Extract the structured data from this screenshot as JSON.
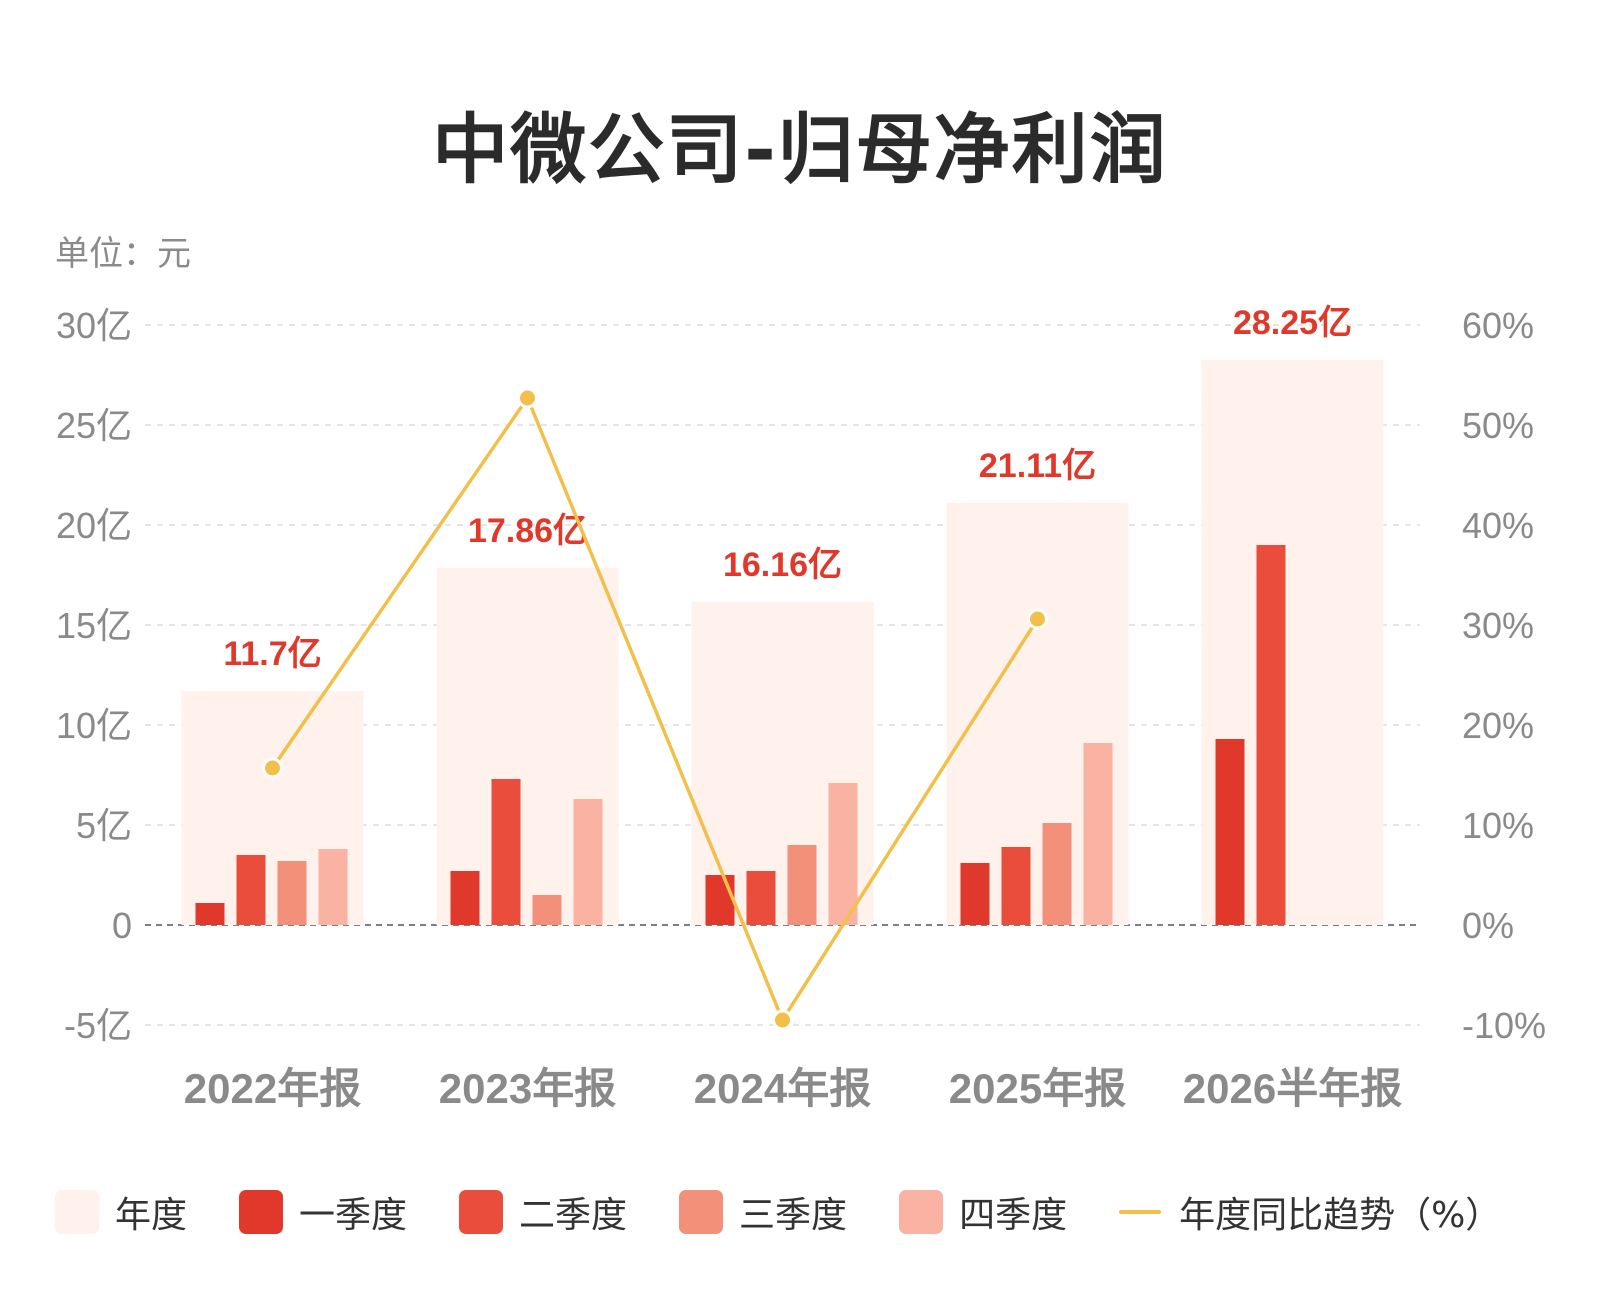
{
  "title": "中微公司-归母净利润",
  "unit_label": "单位：元",
  "legend": [
    {
      "label": "年度",
      "color": "#fff1ec",
      "kind": "box"
    },
    {
      "label": "一季度",
      "color": "#e0392b",
      "kind": "box"
    },
    {
      "label": "二季度",
      "color": "#ea4d3c",
      "kind": "box"
    },
    {
      "label": "三季度",
      "color": "#f2907a",
      "kind": "box"
    },
    {
      "label": "四季度",
      "color": "#fab2a2",
      "kind": "box"
    },
    {
      "label": "年度同比趋势（%）",
      "color": "#f2c04a",
      "kind": "line"
    }
  ],
  "chart_data": {
    "type": "bar",
    "title": "中微公司-归母净利润",
    "categories": [
      "2022年报",
      "2023年报",
      "2024年报",
      "2025年报",
      "2026半年报"
    ],
    "left_axis": {
      "ylim": [
        -5,
        30
      ],
      "ticks": [
        -5,
        0,
        5,
        10,
        15,
        20,
        25,
        30
      ],
      "tick_labels": [
        "-5亿",
        "0",
        "5亿",
        "10亿",
        "15亿",
        "20亿",
        "25亿",
        "30亿"
      ]
    },
    "right_axis": {
      "ylim": [
        -10,
        60
      ],
      "ticks": [
        -10,
        0,
        10,
        20,
        30,
        40,
        50,
        60
      ],
      "tick_labels": [
        "-10%",
        "0%",
        "10%",
        "20%",
        "30%",
        "40%",
        "50%",
        "60%"
      ]
    },
    "grid": true,
    "legend_position": "bottom",
    "annual": {
      "name": "年度",
      "values": [
        11.7,
        17.86,
        16.16,
        21.11,
        28.25
      ],
      "labels": [
        "11.7亿",
        "17.86亿",
        "16.16亿",
        "21.11亿",
        "28.25亿"
      ]
    },
    "series": [
      {
        "name": "一季度",
        "values": [
          1.1,
          2.7,
          2.5,
          3.1,
          9.3
        ]
      },
      {
        "name": "二季度",
        "values": [
          3.5,
          7.3,
          2.7,
          3.9,
          19.0
        ]
      },
      {
        "name": "三季度",
        "values": [
          3.2,
          1.5,
          4.0,
          5.1,
          null
        ]
      },
      {
        "name": "四季度",
        "values": [
          3.8,
          6.3,
          7.1,
          9.1,
          null
        ]
      }
    ],
    "trend": {
      "name": "年度同比趋势（%）",
      "axis": "right",
      "values": [
        15.7,
        52.7,
        -9.5,
        30.6,
        null
      ]
    }
  }
}
